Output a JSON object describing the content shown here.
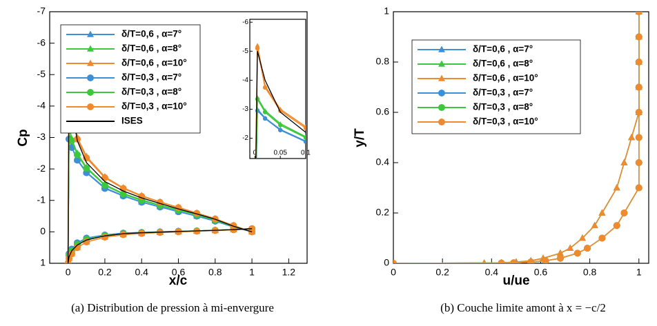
{
  "chart_data": [
    {
      "type": "line",
      "caption": "(a) Distribution de pression à mi-envergure",
      "x_label": "x/c",
      "y_label": "Cp",
      "xlim": [
        -0.1,
        1.3
      ],
      "ylim": [
        1,
        -7
      ],
      "xticks": [
        0,
        0.2,
        0.4,
        0.6,
        0.8,
        1,
        1.2
      ],
      "yticks": [
        1,
        0,
        -1,
        -2,
        -3,
        -4,
        -5,
        -6,
        -7
      ],
      "grid": false,
      "legend": "upper left",
      "x": [
        1,
        0.9,
        0.8,
        0.7,
        0.6,
        0.5,
        0.4,
        0.3,
        0.2,
        0.1,
        0.05,
        0.02,
        0.005,
        0,
        0.005,
        0.02,
        0.05,
        0.1,
        0.2,
        0.3,
        0.4,
        0.5,
        0.6,
        0.7,
        0.8,
        0.9,
        1
      ],
      "series": [
        {
          "name": "δ/T=0,6 , α=7°",
          "color": "#3d8fd6",
          "marker": "triangle",
          "values": [
            0,
            -0.15,
            -0.35,
            -0.5,
            -0.65,
            -0.8,
            -0.95,
            -1.15,
            -1.4,
            -1.9,
            -2.3,
            -2.7,
            -3.0,
            1,
            0.7,
            0.55,
            0.35,
            0.2,
            0.1,
            0.04,
            0.02,
            0,
            -0.02,
            -0.03,
            -0.05,
            -0.07,
            -0.1
          ]
        },
        {
          "name": "δ/T=0,6 , α=8°",
          "color": "#3cc83c",
          "marker": "triangle",
          "values": [
            0,
            -0.17,
            -0.38,
            -0.55,
            -0.7,
            -0.85,
            -1.02,
            -1.22,
            -1.5,
            -2.05,
            -2.5,
            -2.95,
            -3.4,
            1,
            0.75,
            0.6,
            0.4,
            0.24,
            0.12,
            0.06,
            0.03,
            0.01,
            -0.01,
            -0.03,
            -0.05,
            -0.07,
            -0.1
          ]
        },
        {
          "name": "δ/T=0,6 , α=10°",
          "color": "#f08a2c",
          "marker": "triangle",
          "values": [
            0,
            -0.2,
            -0.42,
            -0.6,
            -0.78,
            -0.95,
            -1.15,
            -1.4,
            -1.75,
            -2.4,
            -3.0,
            -3.8,
            -5.2,
            1,
            0.85,
            0.7,
            0.5,
            0.32,
            0.17,
            0.09,
            0.05,
            0.02,
            0,
            -0.02,
            -0.04,
            -0.07,
            -0.1
          ]
        },
        {
          "name": "δ/T=0,3 , α=7°",
          "color": "#3d8fd6",
          "marker": "circle",
          "values": [
            0,
            -0.15,
            -0.34,
            -0.5,
            -0.64,
            -0.79,
            -0.94,
            -1.14,
            -1.38,
            -1.88,
            -2.28,
            -2.68,
            -2.95,
            1,
            0.7,
            0.55,
            0.35,
            0.2,
            0.1,
            0.04,
            0.02,
            0,
            -0.02,
            -0.03,
            -0.05,
            -0.07,
            -0.1
          ]
        },
        {
          "name": "δ/T=0,3 , α=8°",
          "color": "#3cc83c",
          "marker": "circle",
          "values": [
            0,
            -0.17,
            -0.37,
            -0.54,
            -0.69,
            -0.84,
            -1.0,
            -1.2,
            -1.48,
            -2.02,
            -2.45,
            -2.9,
            -3.35,
            1,
            0.75,
            0.6,
            0.4,
            0.24,
            0.12,
            0.06,
            0.03,
            0.01,
            -0.01,
            -0.03,
            -0.05,
            -0.07,
            -0.1
          ]
        },
        {
          "name": "δ/T=0,3 , α=10°",
          "color": "#f08a2c",
          "marker": "circle",
          "values": [
            0,
            -0.2,
            -0.41,
            -0.59,
            -0.77,
            -0.94,
            -1.13,
            -1.38,
            -1.72,
            -2.35,
            -2.95,
            -3.75,
            -5.1,
            1,
            0.85,
            0.7,
            0.5,
            0.32,
            0.17,
            0.09,
            0.05,
            0.02,
            0,
            -0.02,
            -0.04,
            -0.07,
            -0.1
          ]
        },
        {
          "name": "ISES",
          "color": "#000000",
          "marker": "none",
          "values": [
            0,
            -0.18,
            -0.4,
            -0.57,
            -0.73,
            -0.9,
            -1.08,
            -1.3,
            -1.6,
            -2.2,
            -2.9,
            -4.0,
            -5.0,
            1,
            0.8,
            0.6,
            0.42,
            0.26,
            0.13,
            0.06,
            0.03,
            0.01,
            -0.01,
            -0.03,
            -0.05,
            -0.07,
            -0.1
          ]
        }
      ],
      "inset": {
        "xlim": [
          -0.01,
          0.1
        ],
        "ylim": [
          -1.3,
          -6.1
        ],
        "xticks": [
          0,
          0.05,
          0.1
        ],
        "yticks": [
          -2,
          -3,
          -4,
          -5,
          -6
        ]
      }
    },
    {
      "type": "line",
      "caption": "(b) Couche limite amont à x = −c/2",
      "x_label": "u/ue",
      "y_label": "y/T",
      "xlim": [
        0,
        1.04
      ],
      "ylim": [
        0,
        1
      ],
      "xticks": [
        0,
        0.2,
        0.4,
        0.6,
        0.8,
        1
      ],
      "yticks": [
        0,
        0.2,
        0.4,
        0.6,
        0.8,
        1
      ],
      "grid": false,
      "legend": "upper left",
      "y": [
        0,
        0.001,
        0.002,
        0.005,
        0.01,
        0.02,
        0.04,
        0.06,
        0.1,
        0.15,
        0.2,
        0.3,
        0.4,
        0.5,
        0.6,
        0.7,
        0.8,
        0.9,
        1
      ],
      "series": [
        {
          "name": "δ/T=0,6 , α=7°",
          "color": "#3d8fd6",
          "marker": "triangle",
          "x": [
            0,
            0.37,
            0.44,
            0.5,
            0.56,
            0.61,
            0.68,
            0.72,
            0.77,
            0.82,
            0.85,
            0.91,
            0.94,
            0.97,
            1,
            1,
            1,
            1,
            1
          ]
        },
        {
          "name": "δ/T=0,6 , α=8°",
          "color": "#3cc83c",
          "marker": "triangle",
          "x": [
            0,
            0.37,
            0.44,
            0.5,
            0.56,
            0.61,
            0.68,
            0.72,
            0.77,
            0.82,
            0.85,
            0.91,
            0.94,
            0.97,
            1,
            1,
            1,
            1,
            1
          ]
        },
        {
          "name": "δ/T=0,6 , α=10°",
          "color": "#f08a2c",
          "marker": "triangle",
          "x": [
            0,
            0.37,
            0.44,
            0.5,
            0.56,
            0.61,
            0.68,
            0.72,
            0.77,
            0.82,
            0.85,
            0.91,
            0.94,
            0.97,
            1,
            1,
            1,
            1,
            1
          ]
        },
        {
          "name": "δ/T=0,3 , α=7°",
          "color": "#3d8fd6",
          "marker": "circle",
          "x": [
            0,
            0.44,
            0.49,
            0.56,
            0.62,
            0.68,
            0.75,
            0.79,
            0.85,
            0.91,
            0.94,
            1,
            1,
            1,
            1,
            1,
            1,
            1,
            1
          ]
        },
        {
          "name": "δ/T=0,3 , α=8°",
          "color": "#3cc83c",
          "marker": "circle",
          "x": [
            0,
            0.44,
            0.49,
            0.56,
            0.62,
            0.68,
            0.75,
            0.79,
            0.85,
            0.91,
            0.94,
            1,
            1,
            1,
            1,
            1,
            1,
            1,
            1
          ]
        },
        {
          "name": "δ/T=0,3 , α=10°",
          "color": "#f08a2c",
          "marker": "circle",
          "x": [
            0,
            0.44,
            0.49,
            0.56,
            0.62,
            0.68,
            0.75,
            0.79,
            0.85,
            0.91,
            0.94,
            1,
            1,
            1,
            1,
            1,
            1,
            1,
            1
          ]
        }
      ]
    }
  ]
}
